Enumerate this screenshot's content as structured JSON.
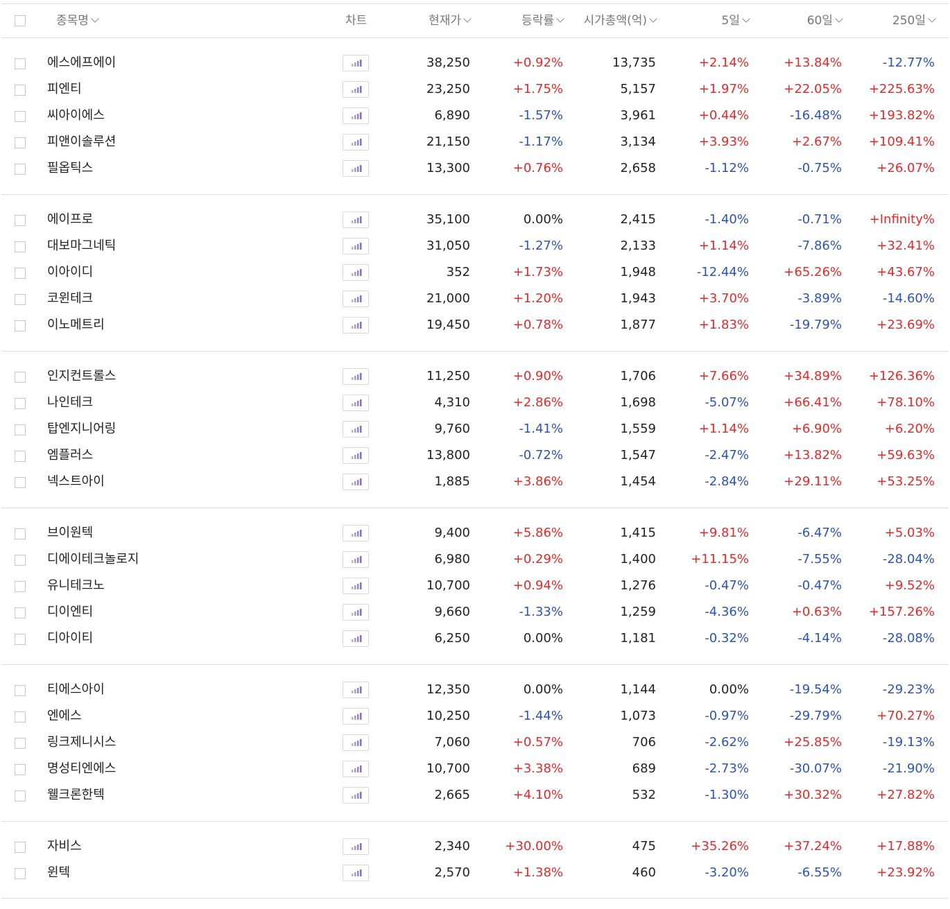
{
  "header": {
    "name": "종목명",
    "chart": "차트",
    "price": "현재가",
    "change": "등락률",
    "mcap": "시가총액(억)",
    "d5": "5일",
    "d60": "60일",
    "d250": "250일"
  },
  "colors": {
    "up": "#e22b2b",
    "down": "#2b54b8",
    "flat": "#222222",
    "chart_icon": "#7b6fd6"
  },
  "chart_icon": "bar-chart-icon",
  "groups": [
    {
      "rows": [
        {
          "name": "에스에프에이",
          "price": "38,250",
          "change": "+0.92%",
          "mcap": "13,735",
          "d5": "+2.14%",
          "d60": "+13.84%",
          "d250": "-12.77%"
        },
        {
          "name": "피엔티",
          "price": "23,250",
          "change": "+1.75%",
          "mcap": "5,157",
          "d5": "+1.97%",
          "d60": "+22.05%",
          "d250": "+225.63%"
        },
        {
          "name": "씨아이에스",
          "price": "6,890",
          "change": "-1.57%",
          "mcap": "3,961",
          "d5": "+0.44%",
          "d60": "-16.48%",
          "d250": "+193.82%"
        },
        {
          "name": "피앤이솔루션",
          "price": "21,150",
          "change": "-1.17%",
          "mcap": "3,134",
          "d5": "+3.93%",
          "d60": "+2.67%",
          "d250": "+109.41%"
        },
        {
          "name": "필옵틱스",
          "price": "13,300",
          "change": "+0.76%",
          "mcap": "2,658",
          "d5": "-1.12%",
          "d60": "-0.75%",
          "d250": "+26.07%"
        }
      ]
    },
    {
      "rows": [
        {
          "name": "에이프로",
          "price": "35,100",
          "change": "0.00%",
          "mcap": "2,415",
          "d5": "-1.40%",
          "d60": "-0.71%",
          "d250": "+Infinity%"
        },
        {
          "name": "대보마그네틱",
          "price": "31,050",
          "change": "-1.27%",
          "mcap": "2,133",
          "d5": "+1.14%",
          "d60": "-7.86%",
          "d250": "+32.41%"
        },
        {
          "name": "이아이디",
          "price": "352",
          "change": "+1.73%",
          "mcap": "1,948",
          "d5": "-12.44%",
          "d60": "+65.26%",
          "d250": "+43.67%"
        },
        {
          "name": "코윈테크",
          "price": "21,000",
          "change": "+1.20%",
          "mcap": "1,943",
          "d5": "+3.70%",
          "d60": "-3.89%",
          "d250": "-14.60%"
        },
        {
          "name": "이노메트리",
          "price": "19,450",
          "change": "+0.78%",
          "mcap": "1,877",
          "d5": "+1.83%",
          "d60": "-19.79%",
          "d250": "+23.69%"
        }
      ]
    },
    {
      "rows": [
        {
          "name": "인지컨트롤스",
          "price": "11,250",
          "change": "+0.90%",
          "mcap": "1,706",
          "d5": "+7.66%",
          "d60": "+34.89%",
          "d250": "+126.36%"
        },
        {
          "name": "나인테크",
          "price": "4,310",
          "change": "+2.86%",
          "mcap": "1,698",
          "d5": "-5.07%",
          "d60": "+66.41%",
          "d250": "+78.10%"
        },
        {
          "name": "탑엔지니어링",
          "price": "9,760",
          "change": "-1.41%",
          "mcap": "1,559",
          "d5": "+1.14%",
          "d60": "+6.90%",
          "d250": "+6.20%"
        },
        {
          "name": "엠플러스",
          "price": "13,800",
          "change": "-0.72%",
          "mcap": "1,547",
          "d5": "-2.47%",
          "d60": "+13.82%",
          "d250": "+59.63%"
        },
        {
          "name": "넥스트아이",
          "price": "1,885",
          "change": "+3.86%",
          "mcap": "1,454",
          "d5": "-2.84%",
          "d60": "+29.11%",
          "d250": "+53.25%"
        }
      ]
    },
    {
      "rows": [
        {
          "name": "브이원텍",
          "price": "9,400",
          "change": "+5.86%",
          "mcap": "1,415",
          "d5": "+9.81%",
          "d60": "-6.47%",
          "d250": "+5.03%"
        },
        {
          "name": "디에이테크놀로지",
          "price": "6,980",
          "change": "+0.29%",
          "mcap": "1,400",
          "d5": "+11.15%",
          "d60": "-7.55%",
          "d250": "-28.04%"
        },
        {
          "name": "유니테크노",
          "price": "10,700",
          "change": "+0.94%",
          "mcap": "1,276",
          "d5": "-0.47%",
          "d60": "-0.47%",
          "d250": "+9.52%"
        },
        {
          "name": "디이엔티",
          "price": "9,660",
          "change": "-1.33%",
          "mcap": "1,259",
          "d5": "-4.36%",
          "d60": "+0.63%",
          "d250": "+157.26%"
        },
        {
          "name": "디아이티",
          "price": "6,250",
          "change": "0.00%",
          "mcap": "1,181",
          "d5": "-0.32%",
          "d60": "-4.14%",
          "d250": "-28.08%"
        }
      ]
    },
    {
      "rows": [
        {
          "name": "티에스아이",
          "price": "12,350",
          "change": "0.00%",
          "mcap": "1,144",
          "d5": "0.00%",
          "d60": "-19.54%",
          "d250": "-29.23%"
        },
        {
          "name": "엔에스",
          "price": "10,250",
          "change": "-1.44%",
          "mcap": "1,073",
          "d5": "-0.97%",
          "d60": "-29.79%",
          "d250": "+70.27%"
        },
        {
          "name": "링크제니시스",
          "price": "7,060",
          "change": "+0.57%",
          "mcap": "706",
          "d5": "-2.62%",
          "d60": "+25.85%",
          "d250": "-19.13%"
        },
        {
          "name": "명성티엔에스",
          "price": "10,700",
          "change": "+3.38%",
          "mcap": "689",
          "d5": "-2.73%",
          "d60": "-30.07%",
          "d250": "-21.90%"
        },
        {
          "name": "웰크론한텍",
          "price": "2,665",
          "change": "+4.10%",
          "mcap": "532",
          "d5": "-1.30%",
          "d60": "+30.32%",
          "d250": "+27.82%"
        }
      ]
    },
    {
      "rows": [
        {
          "name": "자비스",
          "price": "2,340",
          "change": "+30.00%",
          "mcap": "475",
          "d5": "+35.26%",
          "d60": "+37.24%",
          "d250": "+17.88%"
        },
        {
          "name": "윈텍",
          "price": "2,570",
          "change": "+1.38%",
          "mcap": "460",
          "d5": "-3.20%",
          "d60": "-6.55%",
          "d250": "+23.92%"
        }
      ]
    }
  ]
}
